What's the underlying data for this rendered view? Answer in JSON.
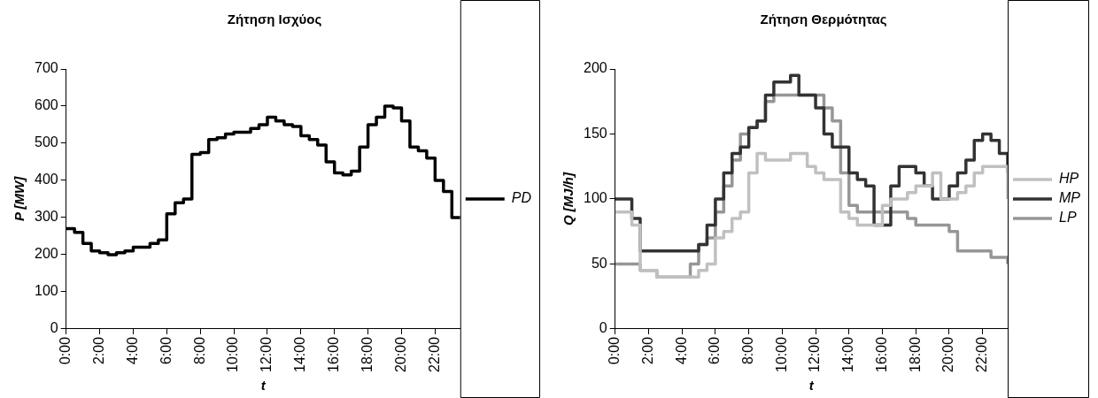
{
  "chart_data": [
    {
      "type": "step",
      "title": "Ζήτηση Ισχύος",
      "xlabel": "t",
      "ylabel": "P [MW]",
      "x": [
        0,
        0.5,
        1,
        1.5,
        2,
        2.5,
        3,
        3.5,
        4,
        4.5,
        5,
        5.5,
        6,
        6.5,
        7,
        7.5,
        8,
        8.5,
        9,
        9.5,
        10,
        10.5,
        11,
        11.5,
        12,
        12.5,
        13,
        13.5,
        14,
        14.5,
        15,
        15.5,
        16,
        16.5,
        17,
        17.5,
        18,
        18.5,
        19,
        19.5,
        20,
        20.5,
        21,
        21.5,
        22,
        22.5,
        23,
        23.5
      ],
      "series": [
        {
          "name": "PD",
          "color": "#000000",
          "values": [
            270,
            260,
            230,
            210,
            205,
            200,
            205,
            210,
            220,
            220,
            230,
            240,
            310,
            340,
            350,
            470,
            475,
            510,
            515,
            525,
            530,
            530,
            540,
            550,
            570,
            560,
            550,
            545,
            520,
            510,
            495,
            450,
            420,
            415,
            425,
            490,
            550,
            570,
            600,
            595,
            560,
            490,
            480,
            460,
            400,
            370,
            300,
            300
          ]
        }
      ],
      "xlim": [
        0,
        23.5
      ],
      "xticks": [
        {
          "value": 0,
          "label": "0:00"
        },
        {
          "value": 2,
          "label": "2:00"
        },
        {
          "value": 4,
          "label": "4:00"
        },
        {
          "value": 6,
          "label": "6:00"
        },
        {
          "value": 8,
          "label": "8:00"
        },
        {
          "value": 10,
          "label": "10:00"
        },
        {
          "value": 12,
          "label": "12:00"
        },
        {
          "value": 14,
          "label": "14:00"
        },
        {
          "value": 16,
          "label": "16:00"
        },
        {
          "value": 18,
          "label": "18:00"
        },
        {
          "value": 20,
          "label": "20:00"
        },
        {
          "value": 22,
          "label": "22:00"
        }
      ],
      "ylim": [
        0,
        700
      ],
      "yticks": [
        0,
        100,
        200,
        300,
        400,
        500,
        600,
        700
      ],
      "grid": false,
      "legend": "right",
      "marker": "none",
      "line_style": "solid"
    },
    {
      "type": "step",
      "title": "Ζήτηση Θερμότητας",
      "xlabel": "t",
      "ylabel": "Q [MJ/h]",
      "x": [
        0,
        0.5,
        1,
        1.5,
        2,
        2.5,
        3,
        3.5,
        4,
        4.5,
        5,
        5.5,
        6,
        6.5,
        7,
        7.5,
        8,
        8.5,
        9,
        9.5,
        10,
        10.5,
        11,
        11.5,
        12,
        12.5,
        13,
        13.5,
        14,
        14.5,
        15,
        15.5,
        16,
        16.5,
        17,
        17.5,
        18,
        18.5,
        19,
        19.5,
        20,
        20.5,
        21,
        21.5,
        22,
        22.5,
        23,
        23.5
      ],
      "series": [
        {
          "name": "HP",
          "color": "#c0c0c0",
          "values": [
            90,
            90,
            80,
            45,
            45,
            40,
            40,
            40,
            40,
            40,
            45,
            50,
            70,
            75,
            85,
            90,
            120,
            135,
            130,
            130,
            130,
            135,
            135,
            125,
            120,
            115,
            115,
            90,
            85,
            80,
            80,
            80,
            95,
            100,
            100,
            105,
            110,
            110,
            120,
            100,
            100,
            105,
            110,
            120,
            125,
            125,
            125,
            100
          ]
        },
        {
          "name": "MP",
          "color": "#333333",
          "values": [
            100,
            100,
            85,
            60,
            60,
            60,
            60,
            60,
            60,
            60,
            65,
            80,
            100,
            120,
            135,
            140,
            155,
            160,
            180,
            190,
            190,
            195,
            180,
            180,
            170,
            150,
            140,
            140,
            120,
            115,
            110,
            80,
            80,
            110,
            125,
            125,
            120,
            110,
            100,
            100,
            110,
            120,
            130,
            145,
            150,
            145,
            135,
            120
          ]
        },
        {
          "name": "LP",
          "color": "#969696",
          "values": [
            50,
            50,
            50,
            45,
            45,
            40,
            40,
            40,
            40,
            50,
            65,
            70,
            90,
            110,
            130,
            150,
            155,
            160,
            175,
            180,
            180,
            180,
            180,
            180,
            180,
            170,
            160,
            120,
            95,
            90,
            90,
            90,
            90,
            90,
            90,
            85,
            80,
            80,
            80,
            80,
            75,
            60,
            60,
            60,
            60,
            55,
            55,
            50
          ]
        }
      ],
      "xlim": [
        0,
        23.5
      ],
      "xticks": [
        {
          "value": 0,
          "label": "0:00"
        },
        {
          "value": 2,
          "label": "2:00"
        },
        {
          "value": 4,
          "label": "4:00"
        },
        {
          "value": 6,
          "label": "6:00"
        },
        {
          "value": 8,
          "label": "8:00"
        },
        {
          "value": 10,
          "label": "10:00"
        },
        {
          "value": 12,
          "label": "12:00"
        },
        {
          "value": 14,
          "label": "14:00"
        },
        {
          "value": 16,
          "label": "16:00"
        },
        {
          "value": 18,
          "label": "18:00"
        },
        {
          "value": 20,
          "label": "20:00"
        },
        {
          "value": 22,
          "label": "22:00"
        }
      ],
      "ylim": [
        0,
        200
      ],
      "yticks": [
        0,
        50,
        100,
        150,
        200
      ],
      "grid": false,
      "legend": "right",
      "marker": "none",
      "line_style": "solid"
    }
  ]
}
